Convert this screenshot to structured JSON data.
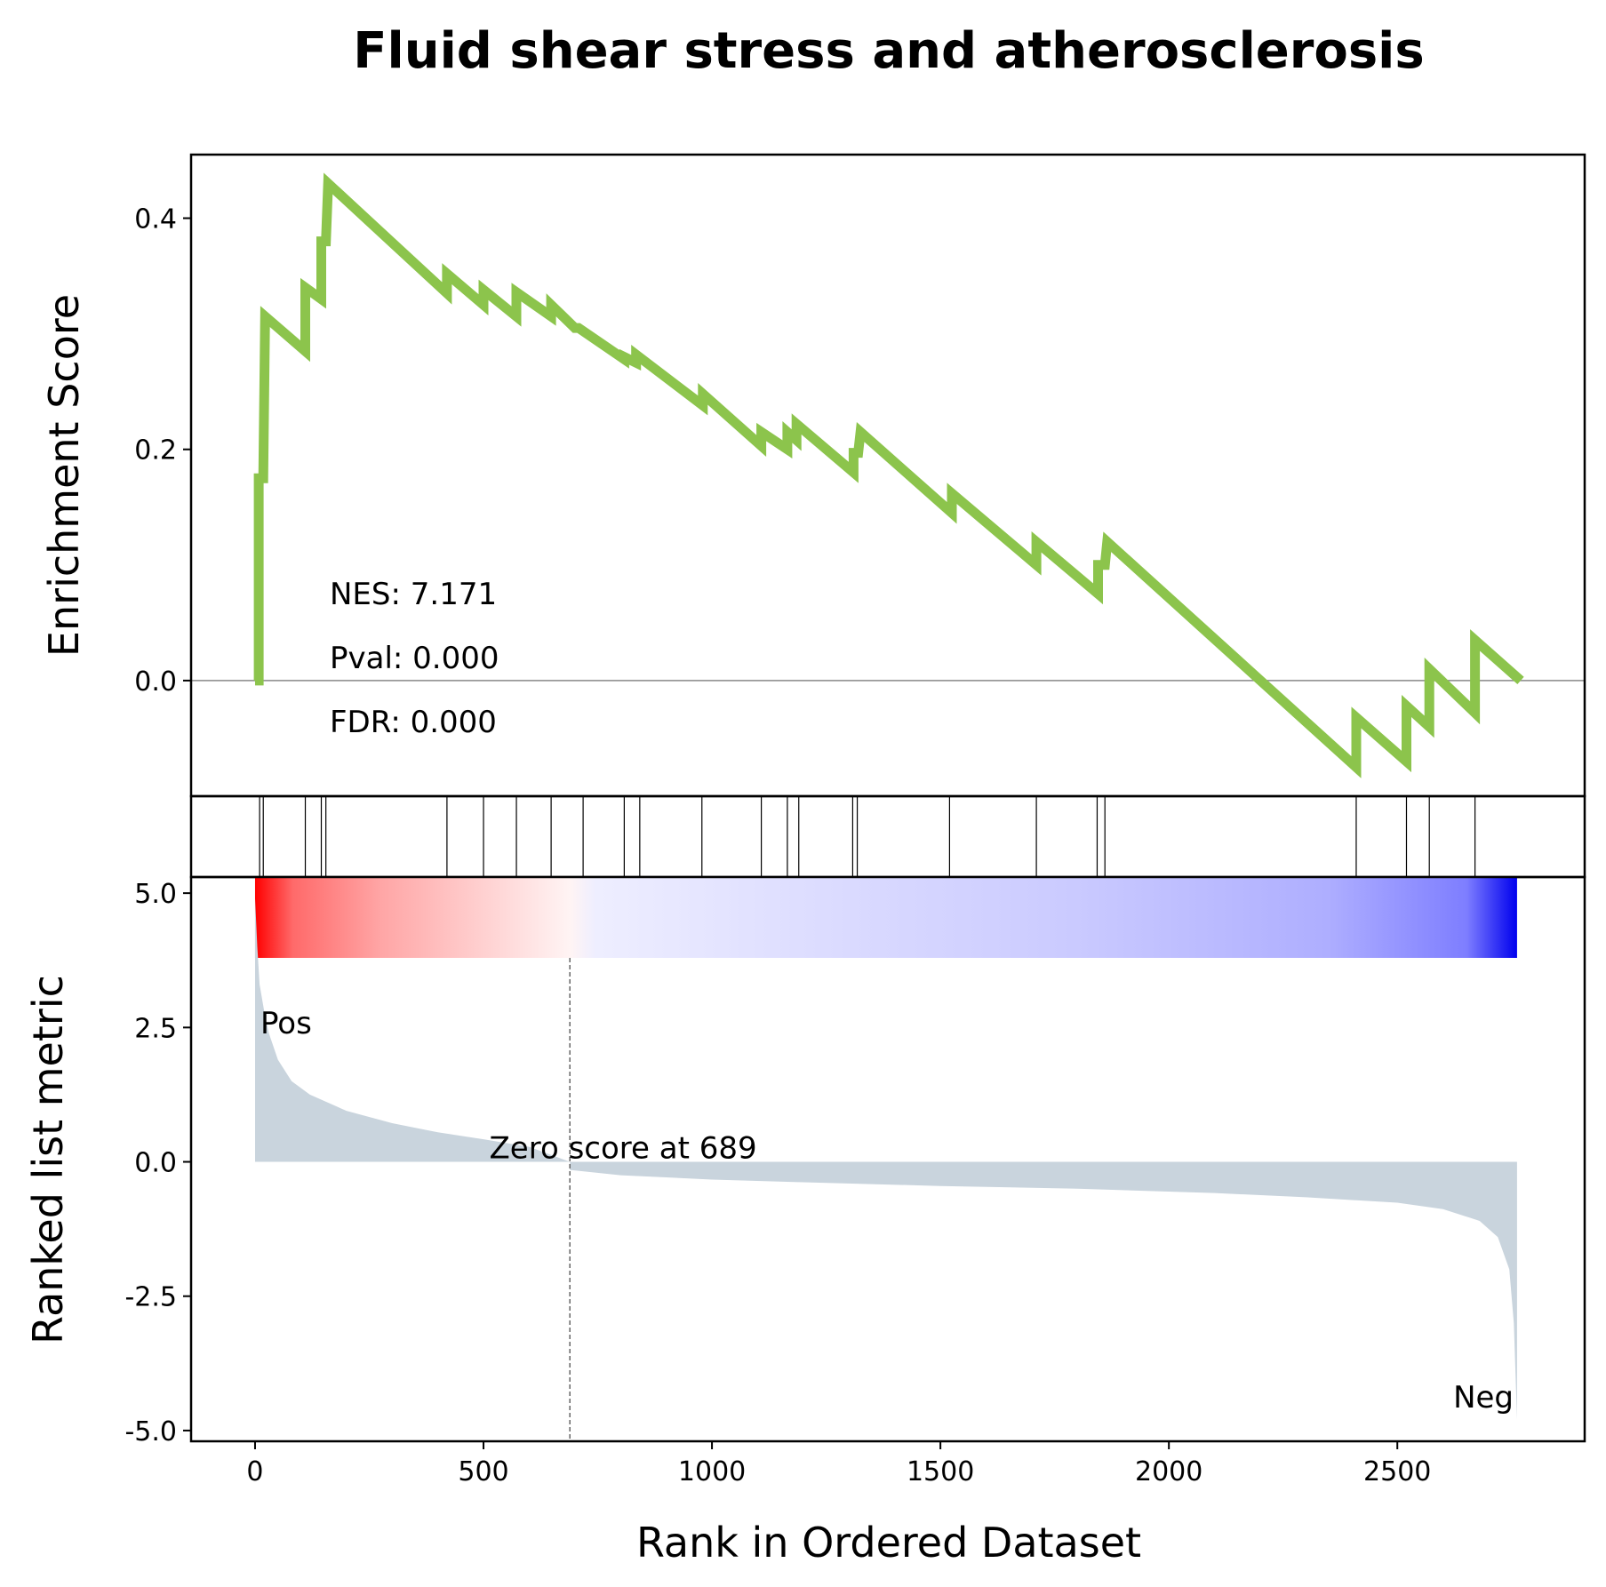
{
  "chart_data": {
    "type": "line",
    "title": "Fluid shear stress and atherosclerosis",
    "xlabel": "Rank in Ordered Dataset",
    "xlim": [
      -140,
      2910
    ],
    "xticks": [
      0,
      500,
      1000,
      1500,
      2000,
      2500
    ],
    "xtick_labels": [
      "0",
      "500",
      "1000",
      "1500",
      "2000",
      "2500"
    ],
    "enrichment_panel": {
      "ylabel": "Enrichment Score",
      "ylim": [
        -0.1,
        0.455
      ],
      "yticks": [
        0.0,
        0.2,
        0.4
      ],
      "ytick_labels": [
        "0.0",
        "0.2",
        "0.4"
      ],
      "baseline": 0.0,
      "line_color": "#8cc44c",
      "es_curve": [
        [
          0,
          0.0
        ],
        [
          8,
          0.0
        ],
        [
          8,
          0.175
        ],
        [
          18,
          0.175
        ],
        [
          22,
          0.315
        ],
        [
          110,
          0.285
        ],
        [
          110,
          0.34
        ],
        [
          145,
          0.33
        ],
        [
          145,
          0.38
        ],
        [
          155,
          0.38
        ],
        [
          160,
          0.43
        ],
        [
          420,
          0.335
        ],
        [
          420,
          0.352
        ],
        [
          500,
          0.325
        ],
        [
          500,
          0.338
        ],
        [
          572,
          0.315
        ],
        [
          572,
          0.336
        ],
        [
          648,
          0.315
        ],
        [
          648,
          0.325
        ],
        [
          700,
          0.305
        ],
        [
          708,
          0.305
        ],
        [
          808,
          0.278
        ],
        [
          808,
          0.28
        ],
        [
          834,
          0.275
        ],
        [
          834,
          0.282
        ],
        [
          980,
          0.238
        ],
        [
          980,
          0.248
        ],
        [
          1108,
          0.203
        ],
        [
          1108,
          0.215
        ],
        [
          1165,
          0.2
        ],
        [
          1165,
          0.215
        ],
        [
          1185,
          0.208
        ],
        [
          1185,
          0.222
        ],
        [
          1310,
          0.18
        ],
        [
          1310,
          0.197
        ],
        [
          1320,
          0.197
        ],
        [
          1325,
          0.215
        ],
        [
          1525,
          0.145
        ],
        [
          1525,
          0.162
        ],
        [
          1710,
          0.1
        ],
        [
          1710,
          0.12
        ],
        [
          1845,
          0.075
        ],
        [
          1845,
          0.1
        ],
        [
          1860,
          0.1
        ],
        [
          1865,
          0.12
        ],
        [
          2410,
          -0.075
        ],
        [
          2410,
          -0.032
        ],
        [
          2520,
          -0.07
        ],
        [
          2520,
          -0.022
        ],
        [
          2570,
          -0.04
        ],
        [
          2570,
          0.01
        ],
        [
          2670,
          -0.028
        ],
        [
          2670,
          0.035
        ],
        [
          2770,
          0.0
        ]
      ],
      "annotations": {
        "nes": "NES: 7.171",
        "pval": "Pval: 0.000",
        "fdr": "FDR: 0.000"
      }
    },
    "hits_panel": {
      "hit_ranks": [
        10,
        18,
        110,
        145,
        155,
        420,
        500,
        572,
        648,
        718,
        808,
        842,
        978,
        1108,
        1165,
        1190,
        1308,
        1318,
        1520,
        1710,
        1843,
        1860,
        2410,
        2520,
        2570,
        2670
      ]
    },
    "ranked_metric_panel": {
      "ylabel": "Ranked list metric",
      "ylim": [
        -5.2,
        5.3
      ],
      "yticks": [
        5.0,
        2.5,
        0.0,
        -2.5,
        -5.0
      ],
      "ytick_labels": [
        "5.0",
        "2.5",
        "0.0",
        "-2.5",
        "-5.0"
      ],
      "fill_color": "#c9d4dd",
      "zero_score_rank": 689,
      "zero_label": "Zero score at 689",
      "pos_label": "Pos",
      "neg_label": "Neg",
      "pos_color": "#ff0000",
      "neg_color": "#0000ff",
      "metric_curve": [
        [
          0,
          4.9
        ],
        [
          5,
          4.0
        ],
        [
          10,
          3.3
        ],
        [
          20,
          2.8
        ],
        [
          30,
          2.4
        ],
        [
          50,
          1.9
        ],
        [
          80,
          1.5
        ],
        [
          120,
          1.25
        ],
        [
          200,
          0.95
        ],
        [
          300,
          0.72
        ],
        [
          400,
          0.55
        ],
        [
          500,
          0.42
        ],
        [
          600,
          0.28
        ],
        [
          689,
          0.0
        ],
        [
          689,
          -0.15
        ],
        [
          800,
          -0.25
        ],
        [
          1000,
          -0.33
        ],
        [
          1200,
          -0.38
        ],
        [
          1500,
          -0.45
        ],
        [
          1800,
          -0.5
        ],
        [
          2100,
          -0.58
        ],
        [
          2300,
          -0.66
        ],
        [
          2500,
          -0.76
        ],
        [
          2600,
          -0.88
        ],
        [
          2680,
          -1.1
        ],
        [
          2720,
          -1.4
        ],
        [
          2745,
          -2.0
        ],
        [
          2755,
          -3.0
        ],
        [
          2762,
          -4.8
        ]
      ]
    }
  }
}
